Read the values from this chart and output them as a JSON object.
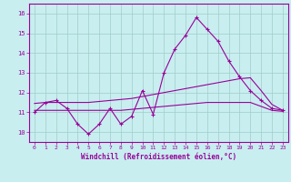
{
  "xlabel": "Windchill (Refroidissement éolien,°C)",
  "background_color": "#c8eef0",
  "grid_color": "#a0ccc8",
  "line_color": "#990099",
  "xlim": [
    -0.5,
    23.5
  ],
  "ylim": [
    9.5,
    16.5
  ],
  "yticks": [
    10,
    11,
    12,
    13,
    14,
    15,
    16
  ],
  "xticks": [
    0,
    1,
    2,
    3,
    4,
    5,
    6,
    7,
    8,
    9,
    10,
    11,
    12,
    13,
    14,
    15,
    16,
    17,
    18,
    19,
    20,
    21,
    22,
    23
  ],
  "hours": [
    0,
    1,
    2,
    3,
    4,
    5,
    6,
    7,
    8,
    9,
    10,
    11,
    12,
    13,
    14,
    15,
    16,
    17,
    18,
    19,
    20,
    21,
    22,
    23
  ],
  "main_values": [
    11.0,
    11.5,
    11.6,
    11.2,
    10.4,
    9.9,
    10.4,
    11.2,
    10.4,
    10.8,
    12.1,
    10.9,
    13.0,
    14.2,
    14.9,
    15.8,
    15.2,
    14.6,
    13.6,
    12.8,
    12.1,
    11.6,
    11.2,
    11.1
  ],
  "smooth1": [
    11.45,
    11.5,
    11.5,
    11.5,
    11.5,
    11.5,
    11.55,
    11.6,
    11.65,
    11.7,
    11.8,
    11.9,
    12.0,
    12.1,
    12.2,
    12.3,
    12.4,
    12.5,
    12.6,
    12.7,
    12.75,
    12.1,
    11.4,
    11.1
  ],
  "smooth2": [
    11.1,
    11.1,
    11.1,
    11.1,
    11.1,
    11.1,
    11.1,
    11.1,
    11.1,
    11.15,
    11.2,
    11.25,
    11.3,
    11.35,
    11.4,
    11.45,
    11.5,
    11.5,
    11.5,
    11.5,
    11.5,
    11.3,
    11.1,
    11.05
  ]
}
